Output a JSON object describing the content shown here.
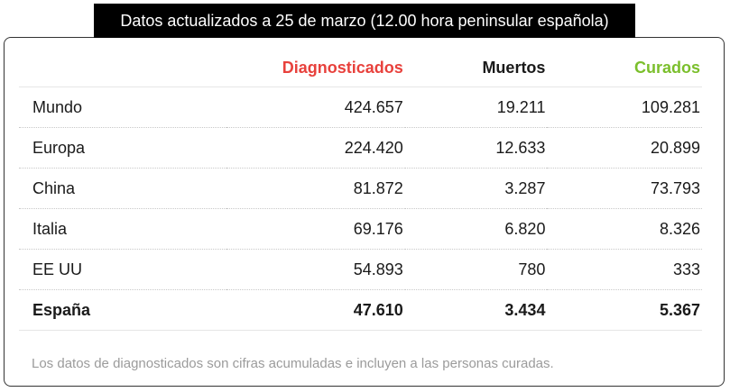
{
  "banner": "Datos actualizados a 25 de marzo (12.00 hora peninsular española)",
  "colors": {
    "diagnosticados": "#e8413c",
    "muertos": "#1a1a1a",
    "curados": "#7bbf2c"
  },
  "table": {
    "headers": {
      "country": "",
      "diagnosticados": "Diagnosticados",
      "muertos": "Muertos",
      "curados": "Curados"
    },
    "rows": [
      {
        "country": "Mundo",
        "diagnosticados": "424.657",
        "muertos": "19.211",
        "curados": "109.281"
      },
      {
        "country": "Europa",
        "diagnosticados": "224.420",
        "muertos": "12.633",
        "curados": "20.899"
      },
      {
        "country": "China",
        "diagnosticados": "81.872",
        "muertos": "3.287",
        "curados": "73.793"
      },
      {
        "country": "Italia",
        "diagnosticados": "69.176",
        "muertos": "6.820",
        "curados": "8.326"
      },
      {
        "country": "EE UU",
        "diagnosticados": "54.893",
        "muertos": "780",
        "curados": "333"
      },
      {
        "country": "España",
        "diagnosticados": "47.610",
        "muertos": "3.434",
        "curados": "5.367"
      }
    ]
  },
  "note": "Los datos de diagnosticados son cifras acumuladas e incluyen a las personas curadas."
}
